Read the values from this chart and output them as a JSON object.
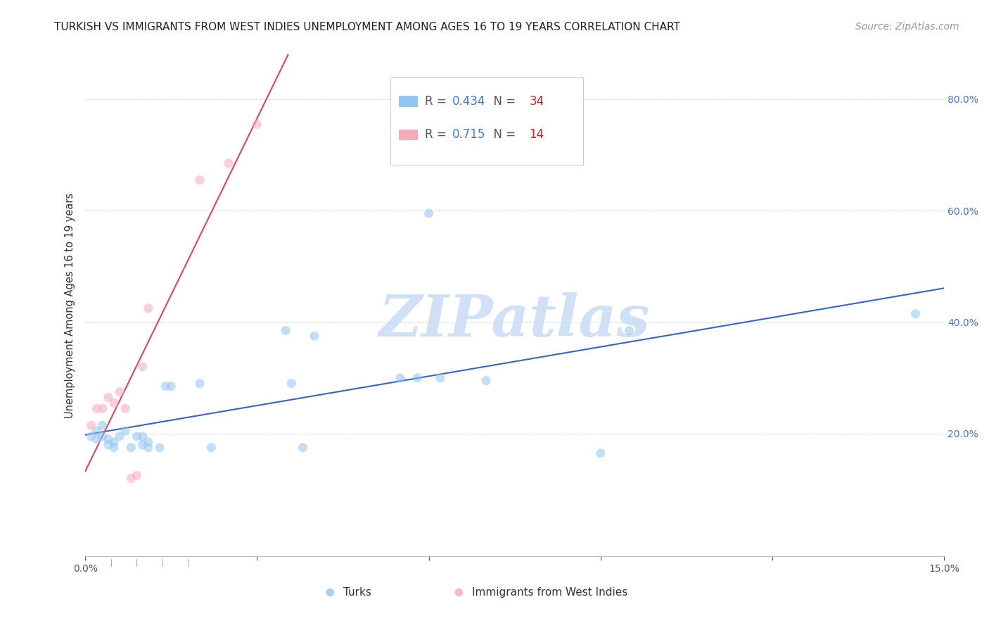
{
  "title": "TURKISH VS IMMIGRANTS FROM WEST INDIES UNEMPLOYMENT AMONG AGES 16 TO 19 YEARS CORRELATION CHART",
  "source": "Source: ZipAtlas.com",
  "ylabel": "Unemployment Among Ages 16 to 19 years",
  "xlim": [
    0.0,
    0.15
  ],
  "ylim": [
    -0.02,
    0.88
  ],
  "xticks": [
    0.0,
    0.03,
    0.06,
    0.09,
    0.12,
    0.15
  ],
  "xtick_labels": [
    "0.0%",
    "",
    "",
    "",
    "",
    "15.0%"
  ],
  "yticks": [
    0.2,
    0.4,
    0.6,
    0.8
  ],
  "ytick_labels": [
    "20.0%",
    "40.0%",
    "60.0%",
    "80.0%"
  ],
  "blue_R": "0.434",
  "blue_N": "34",
  "pink_R": "0.715",
  "pink_N": "14",
  "blue_color": "#92C5F0",
  "pink_color": "#F5AABB",
  "blue_line_color": "#3366CC",
  "pink_line_color": "#DD4466",
  "watermark_text": "ZIPatlas",
  "watermark_color": "#C8DCF5",
  "legend_label_blue": "Turks",
  "legend_label_pink": "Immigrants from West Indies",
  "blue_x": [
    0.001,
    0.002,
    0.002,
    0.003,
    0.003,
    0.004,
    0.004,
    0.005,
    0.005,
    0.006,
    0.007,
    0.008,
    0.009,
    0.01,
    0.01,
    0.011,
    0.011,
    0.013,
    0.014,
    0.015,
    0.02,
    0.022,
    0.035,
    0.036,
    0.038,
    0.04,
    0.055,
    0.058,
    0.06,
    0.062,
    0.07,
    0.09,
    0.095,
    0.145
  ],
  "blue_y": [
    0.195,
    0.205,
    0.19,
    0.195,
    0.215,
    0.18,
    0.19,
    0.185,
    0.175,
    0.195,
    0.205,
    0.175,
    0.195,
    0.18,
    0.195,
    0.175,
    0.185,
    0.175,
    0.285,
    0.285,
    0.29,
    0.175,
    0.385,
    0.29,
    0.175,
    0.375,
    0.3,
    0.3,
    0.595,
    0.3,
    0.295,
    0.165,
    0.385,
    0.415
  ],
  "pink_x": [
    0.001,
    0.002,
    0.003,
    0.004,
    0.005,
    0.006,
    0.007,
    0.008,
    0.009,
    0.01,
    0.011,
    0.02,
    0.025,
    0.03
  ],
  "pink_y": [
    0.215,
    0.245,
    0.245,
    0.265,
    0.255,
    0.275,
    0.245,
    0.12,
    0.125,
    0.32,
    0.425,
    0.655,
    0.685,
    0.755
  ],
  "marker_size": 90,
  "marker_alpha": 0.55,
  "title_fontsize": 11,
  "axis_label_fontsize": 10.5,
  "tick_fontsize": 10,
  "source_fontsize": 10,
  "background_color": "#FFFFFF",
  "grid_color": "#DDDDDD"
}
